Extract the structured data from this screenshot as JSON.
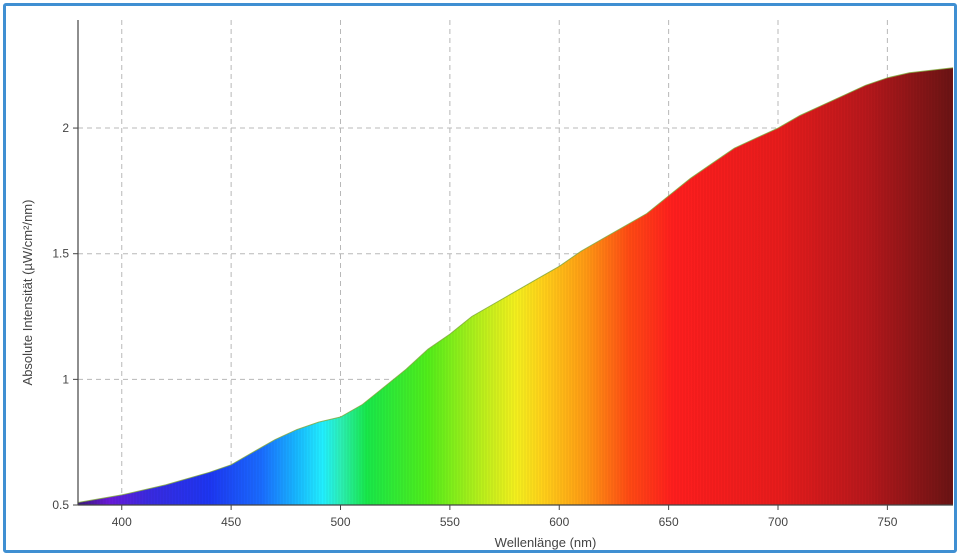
{
  "chart_data": {
    "type": "area",
    "title": "",
    "xlabel": "Wellenlänge (nm)",
    "ylabel": "Absolute Intensität (µW/cm²/nm)",
    "xlim": [
      380,
      780
    ],
    "ylim": [
      0.5,
      2.43
    ],
    "grid": true,
    "xticks": [
      400,
      450,
      500,
      550,
      600,
      650,
      700,
      750
    ],
    "yticks": [
      0.5,
      1,
      1.5,
      2
    ],
    "xtick_labels": [
      "400",
      "450",
      "500",
      "550",
      "600",
      "650",
      "700",
      "750"
    ],
    "ytick_labels": [
      "0.5",
      "1",
      "1.5",
      "2"
    ],
    "fill": "visible-spectrum gradient",
    "x": [
      380,
      400,
      420,
      440,
      450,
      460,
      470,
      480,
      490,
      500,
      510,
      520,
      530,
      540,
      550,
      560,
      570,
      580,
      590,
      600,
      610,
      620,
      630,
      640,
      650,
      660,
      670,
      680,
      690,
      700,
      710,
      720,
      730,
      740,
      750,
      760,
      770,
      780
    ],
    "y": [
      0.51,
      0.54,
      0.58,
      0.63,
      0.66,
      0.71,
      0.76,
      0.8,
      0.83,
      0.85,
      0.9,
      0.97,
      1.04,
      1.12,
      1.18,
      1.25,
      1.3,
      1.35,
      1.4,
      1.45,
      1.51,
      1.56,
      1.61,
      1.66,
      1.73,
      1.8,
      1.86,
      1.92,
      1.96,
      2.0,
      2.05,
      2.09,
      2.13,
      2.17,
      2.2,
      2.22,
      2.23,
      2.24
    ]
  }
}
